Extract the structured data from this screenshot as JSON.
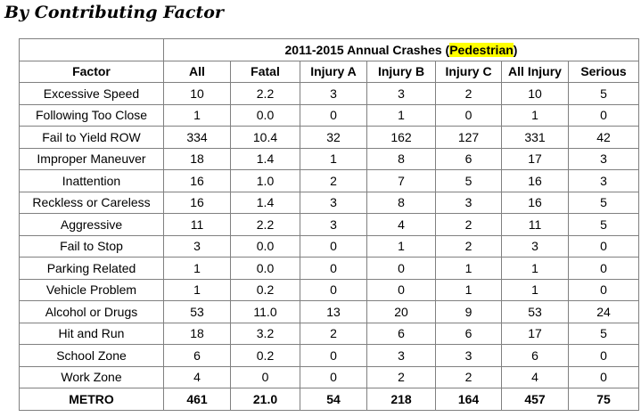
{
  "section_title": "By Contributing Factor",
  "table": {
    "super_header_text": "2011-2015 Annual Crashes (",
    "super_header_highlight": "Pedestrian",
    "super_header_close": ")",
    "highlight_color": "#ffff00",
    "columns": [
      "Factor",
      "All",
      "Fatal",
      "Injury A",
      "Injury B",
      "Injury C",
      "All Injury",
      "Serious"
    ],
    "rows": [
      [
        "Excessive Speed",
        "10",
        "2.2",
        "3",
        "3",
        "2",
        "10",
        "5"
      ],
      [
        "Following Too Close",
        "1",
        "0.0",
        "0",
        "1",
        "0",
        "1",
        "0"
      ],
      [
        "Fail to Yield ROW",
        "334",
        "10.4",
        "32",
        "162",
        "127",
        "331",
        "42"
      ],
      [
        "Improper Maneuver",
        "18",
        "1.4",
        "1",
        "8",
        "6",
        "17",
        "3"
      ],
      [
        "Inattention",
        "16",
        "1.0",
        "2",
        "7",
        "5",
        "16",
        "3"
      ],
      [
        "Reckless or Careless",
        "16",
        "1.4",
        "3",
        "8",
        "3",
        "16",
        "5"
      ],
      [
        "Aggressive",
        "11",
        "2.2",
        "3",
        "4",
        "2",
        "11",
        "5"
      ],
      [
        "Fail to Stop",
        "3",
        "0.0",
        "0",
        "1",
        "2",
        "3",
        "0"
      ],
      [
        "Parking Related",
        "1",
        "0.0",
        "0",
        "0",
        "1",
        "1",
        "0"
      ],
      [
        "Vehicle Problem",
        "1",
        "0.2",
        "0",
        "0",
        "1",
        "1",
        "0"
      ],
      [
        "Alcohol or Drugs",
        "53",
        "11.0",
        "13",
        "20",
        "9",
        "53",
        "24"
      ],
      [
        "Hit and Run",
        "18",
        "3.2",
        "2",
        "6",
        "6",
        "17",
        "5"
      ],
      [
        "School Zone",
        "6",
        "0.2",
        "0",
        "3",
        "3",
        "6",
        "0"
      ],
      [
        "Work Zone",
        "4",
        "0",
        "0",
        "2",
        "2",
        "4",
        "0"
      ]
    ],
    "total": [
      "METRO",
      "461",
      "21.0",
      "54",
      "218",
      "164",
      "457",
      "75"
    ]
  }
}
